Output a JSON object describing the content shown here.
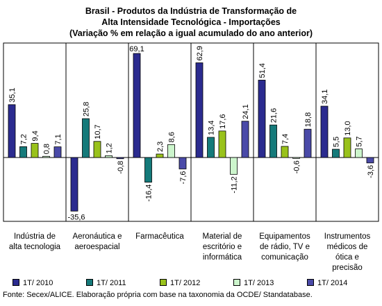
{
  "title": {
    "line1": "Brasil - Produtos da Indústria de Transformação de",
    "line2": "Alta Intensidade Tecnológica - Importações",
    "line3": "(Variação % em relação a igual acumulado do ano anterior)"
  },
  "chart_data": {
    "type": "bar",
    "title": "Brasil - Produtos da Indústria de Transformação de Alta Intensidade Tecnológica - Importações (Variação % em relação a igual acumulado do ano anterior)",
    "categories": [
      [
        "Indústria de",
        "alta tecnologia"
      ],
      [
        "Aeronáutica e",
        "aeroespacial"
      ],
      [
        "Farmacêutica"
      ],
      [
        "Material de",
        "escritório e",
        "informática"
      ],
      [
        "Equipamentos",
        "de rádio, TV e",
        "comunicação"
      ],
      [
        "Instrumentos",
        "médicos de",
        "ótica e",
        "precisão"
      ]
    ],
    "series": [
      {
        "name": "1T/ 2010",
        "color": "#2b2b8f",
        "values": [
          35.1,
          -35.6,
          69.1,
          62.9,
          51.4,
          34.1
        ],
        "labels": [
          "35,1",
          "-35,6",
          "69,1",
          "62,9",
          "51,4",
          "34,1"
        ]
      },
      {
        "name": "1T/ 2011",
        "color": "#157a7a",
        "values": [
          7.2,
          25.8,
          -16.4,
          13.4,
          21.6,
          5.5
        ],
        "labels": [
          "7,2",
          "25,8",
          "-16,4",
          "13,4",
          "21,6",
          "5,5"
        ]
      },
      {
        "name": "1T/ 2012",
        "color": "#99c21b",
        "values": [
          9.4,
          10.7,
          2.3,
          17.6,
          7.4,
          13.0
        ],
        "labels": [
          "9,4",
          "10,7",
          "2,3",
          "17,6",
          "7,4",
          "13,0"
        ]
      },
      {
        "name": "1T/ 2013",
        "color": "#ccf5cc",
        "values": [
          0.8,
          1.2,
          8.6,
          -11.2,
          -0.6,
          5.7
        ],
        "labels": [
          "0,8",
          "1,2",
          "8,6",
          "-11,2",
          "-0,6",
          "5,7"
        ]
      },
      {
        "name": "1T/ 2014",
        "color": "#4a4aa8",
        "values": [
          7.1,
          -0.8,
          -7.6,
          24.1,
          18.8,
          -3.6
        ],
        "labels": [
          "7,1",
          "-0,8",
          "-7,6",
          "24,1",
          "18,8",
          "-3,6"
        ]
      }
    ],
    "ylim": [
      -45,
      75
    ],
    "grid": false,
    "legend_position": "bottom"
  },
  "source": "Fonte: Secex/ALICE. Elaboração própria com base na taxonomia da OCDE/ Standatabase."
}
